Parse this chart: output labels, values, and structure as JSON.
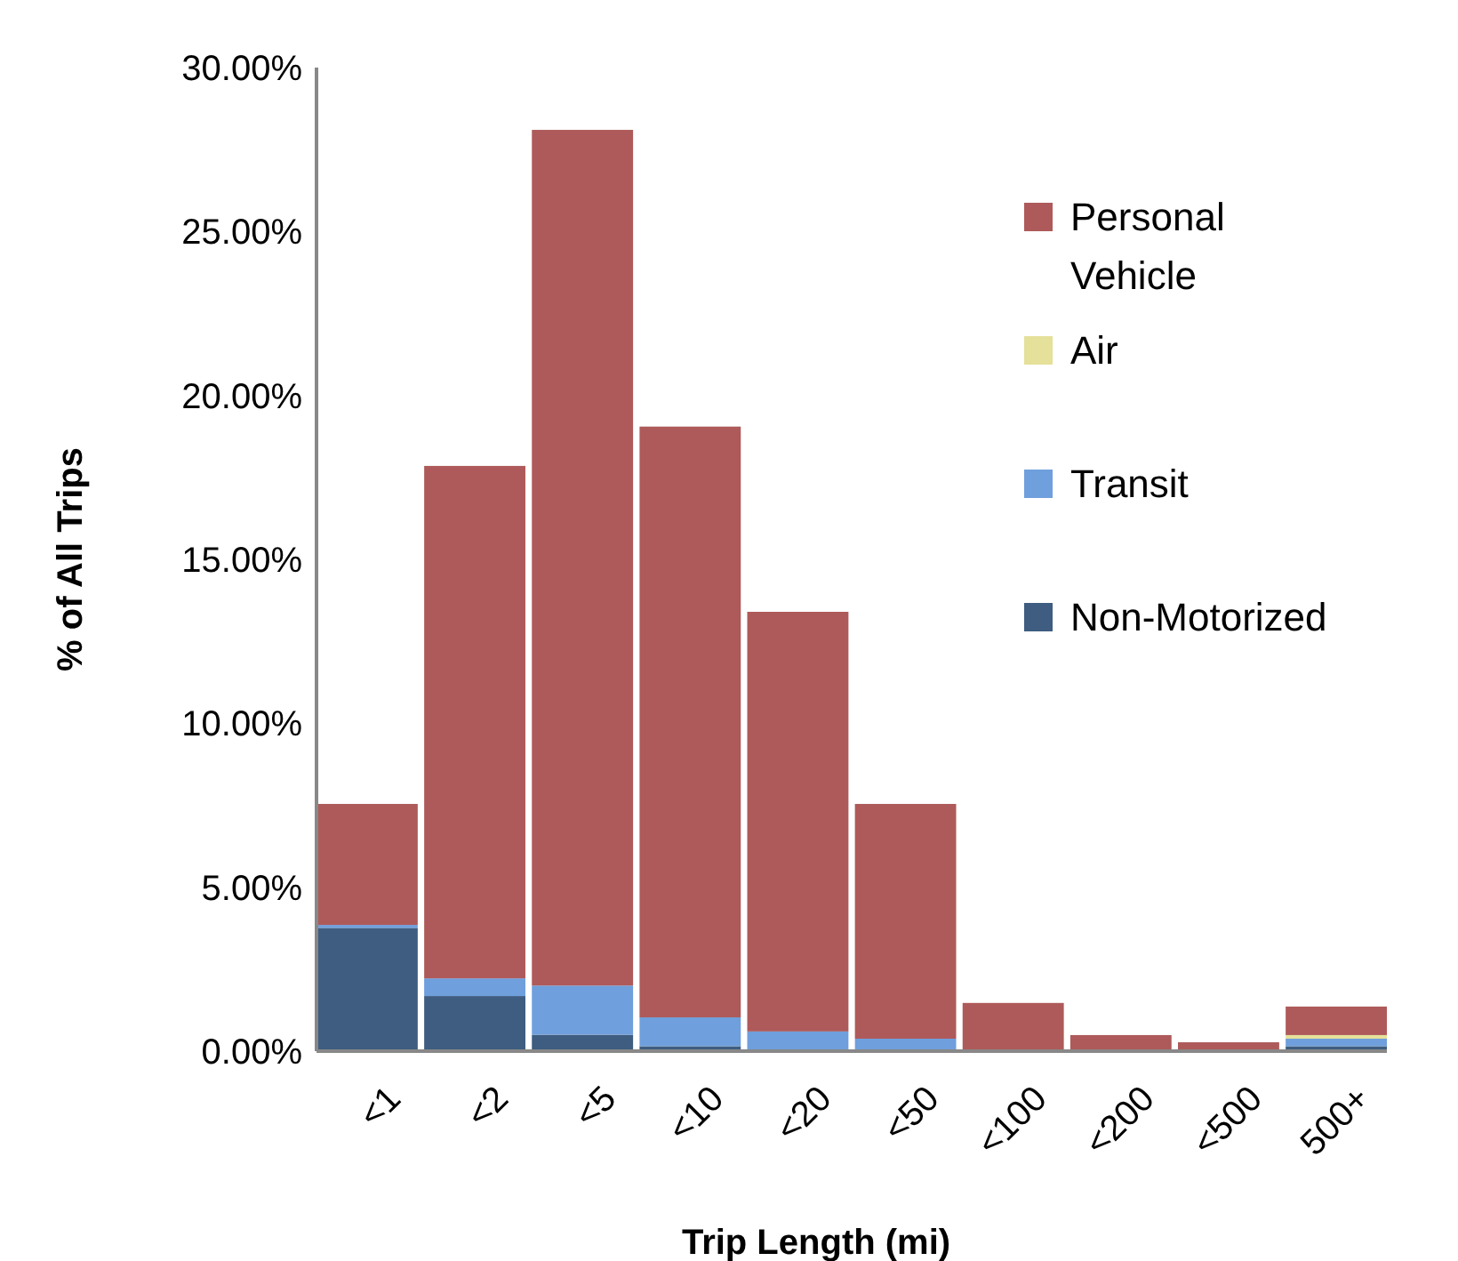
{
  "chart_data": {
    "type": "bar",
    "stacked": true,
    "xlabel": "Trip Length (mi)",
    "ylabel": "% of All Trips",
    "categories": [
      "<1",
      "<2",
      "<5",
      "<10",
      "<20",
      "<50",
      "<100",
      "<200",
      "<500",
      "500+"
    ],
    "series": [
      {
        "name": "Non-Motorized",
        "color": "#3e5d80",
        "values": [
          3.76,
          1.68,
          0.5,
          0.15,
          0.05,
          0.05,
          0,
          0,
          0,
          0.15
        ]
      },
      {
        "name": "Transit",
        "color": "#6f9fdc",
        "values": [
          0.09,
          0.54,
          1.5,
          0.88,
          0.55,
          0.33,
          0,
          0,
          0,
          0.23
        ]
      },
      {
        "name": "Air",
        "color": "#e5e09a",
        "values": [
          0,
          0,
          0,
          0,
          0,
          0,
          0,
          0,
          0,
          0.11
        ]
      },
      {
        "name": "Personal Vehicle",
        "color": "#ae5a5a",
        "values": [
          3.69,
          15.63,
          26.1,
          18.02,
          12.8,
          7.16,
          1.47,
          0.49,
          0.27,
          0.87
        ]
      }
    ],
    "ylim": [
      0,
      30
    ],
    "yticks": [
      {
        "value": 0,
        "label": "0.00%"
      },
      {
        "value": 5,
        "label": "5.00%"
      },
      {
        "value": 10,
        "label": "10.00%"
      },
      {
        "value": 15,
        "label": "15.00%"
      },
      {
        "value": 20,
        "label": "20.00%"
      },
      {
        "value": 25,
        "label": "25.00%"
      },
      {
        "value": 30,
        "label": "30.00%"
      }
    ],
    "legend": "top right",
    "grid": false
  }
}
